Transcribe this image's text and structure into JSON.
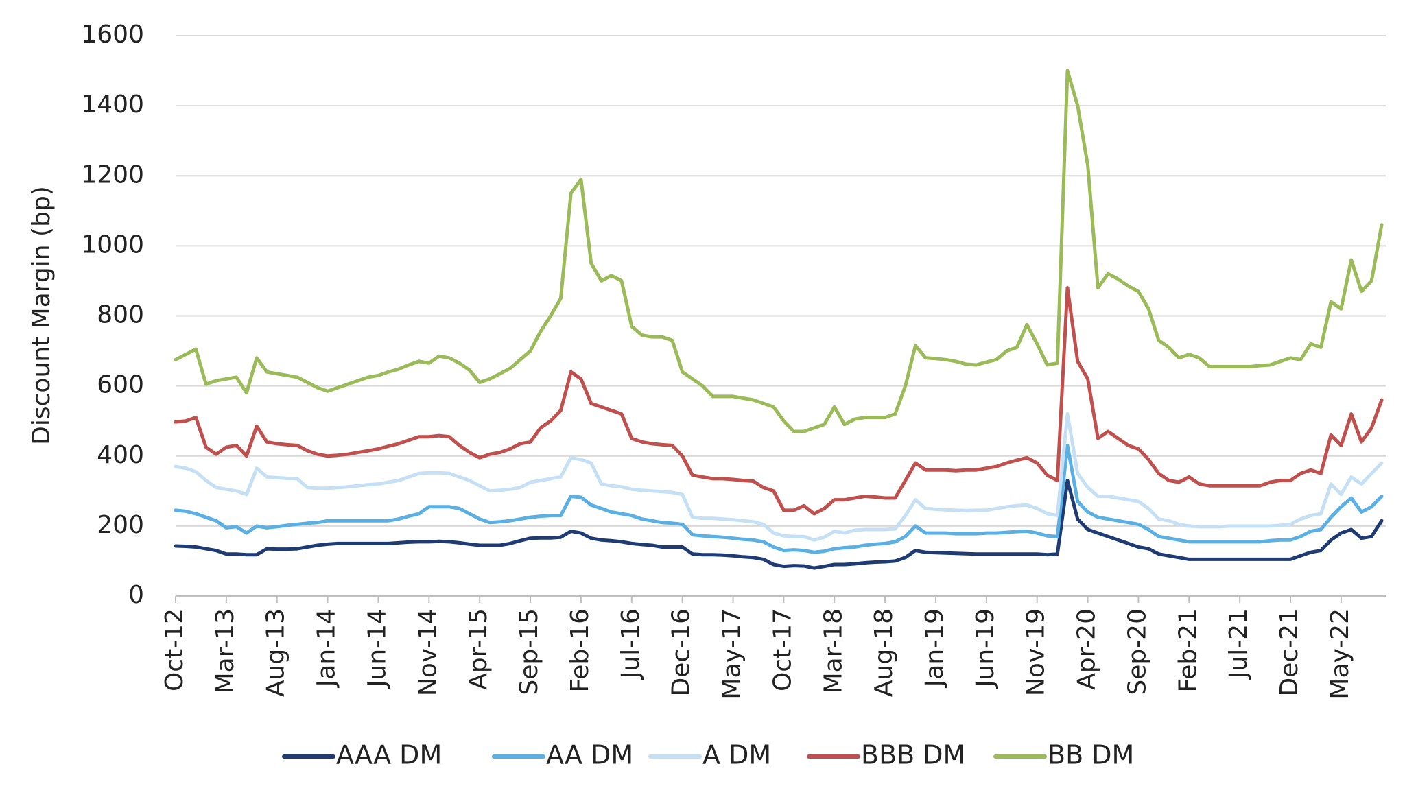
{
  "chart_data": {
    "type": "line",
    "y_label": "Discount Margin (bp)",
    "categories": [
      "Oct-12",
      null,
      null,
      null,
      null,
      "Mar-13",
      null,
      null,
      null,
      null,
      "Aug-13",
      null,
      null,
      null,
      null,
      "Jan-14",
      null,
      null,
      null,
      null,
      "Jun-14",
      null,
      null,
      null,
      null,
      "Nov-14",
      null,
      null,
      null,
      null,
      "Apr-15",
      null,
      null,
      null,
      null,
      "Sep-15",
      null,
      null,
      null,
      null,
      "Feb-16",
      null,
      null,
      null,
      null,
      "Jul-16",
      null,
      null,
      null,
      null,
      "Dec-16",
      null,
      null,
      null,
      null,
      "May-17",
      null,
      null,
      null,
      null,
      "Oct-17",
      null,
      null,
      null,
      null,
      "Mar-18",
      null,
      null,
      null,
      null,
      "Aug-18",
      null,
      null,
      null,
      null,
      "Jan-19",
      null,
      null,
      null,
      null,
      "Jun-19",
      null,
      null,
      null,
      null,
      "Nov-19",
      null,
      null,
      null,
      null,
      "Apr-20",
      null,
      null,
      null,
      null,
      "Sep-20",
      null,
      null,
      null,
      null,
      "Feb-21",
      null,
      null,
      null,
      null,
      "Jul-21",
      null,
      null,
      null,
      null,
      "Dec-21",
      null,
      null,
      null,
      null,
      "May-22",
      null,
      null,
      null,
      null
    ],
    "ylim": [
      0,
      1600
    ],
    "yticks": [
      0,
      200,
      400,
      600,
      800,
      1000,
      1200,
      1400,
      1600
    ],
    "grid": true,
    "legend": "bottom",
    "series": [
      {
        "name": "AAA DM",
        "color": "#1f3b73",
        "values": [
          143,
          142,
          140,
          135,
          130,
          120,
          120,
          118,
          118,
          135,
          134,
          134,
          135,
          140,
          145,
          148,
          150,
          150,
          150,
          150,
          150,
          150,
          152,
          154,
          155,
          155,
          156,
          155,
          152,
          148,
          145,
          145,
          145,
          150,
          158,
          165,
          166,
          166,
          168,
          185,
          180,
          165,
          160,
          158,
          155,
          150,
          147,
          145,
          140,
          140,
          140,
          120,
          118,
          118,
          117,
          115,
          112,
          110,
          105,
          90,
          85,
          87,
          86,
          80,
          85,
          90,
          90,
          92,
          95,
          97,
          98,
          100,
          110,
          130,
          125,
          124,
          123,
          122,
          121,
          120,
          120,
          120,
          120,
          120,
          120,
          120,
          118,
          120,
          330,
          220,
          190,
          180,
          170,
          160,
          150,
          140,
          135,
          120,
          115,
          110,
          105,
          105,
          105,
          105,
          105,
          105,
          105,
          105,
          105,
          105,
          105,
          115,
          125,
          130,
          160,
          180,
          190,
          165,
          170,
          215
        ]
      },
      {
        "name": "AA DM",
        "color": "#5aafe3",
        "values": [
          245,
          242,
          235,
          225,
          215,
          195,
          198,
          180,
          200,
          195,
          198,
          202,
          205,
          208,
          210,
          215,
          215,
          215,
          215,
          215,
          215,
          215,
          220,
          228,
          235,
          255,
          255,
          255,
          250,
          235,
          220,
          210,
          212,
          215,
          220,
          225,
          228,
          230,
          230,
          285,
          282,
          260,
          250,
          240,
          235,
          230,
          220,
          215,
          210,
          208,
          205,
          175,
          172,
          170,
          168,
          165,
          162,
          160,
          155,
          140,
          130,
          132,
          130,
          125,
          128,
          135,
          138,
          140,
          145,
          148,
          150,
          155,
          170,
          200,
          180,
          180,
          180,
          178,
          178,
          178,
          180,
          180,
          182,
          184,
          185,
          180,
          172,
          170,
          430,
          270,
          240,
          225,
          220,
          215,
          210,
          205,
          190,
          170,
          165,
          160,
          155,
          155,
          155,
          155,
          155,
          155,
          155,
          155,
          158,
          160,
          160,
          170,
          185,
          190,
          225,
          255,
          280,
          240,
          255,
          285
        ]
      },
      {
        "name": "A DM",
        "color": "#c5e0f4",
        "values": [
          370,
          365,
          355,
          330,
          310,
          305,
          300,
          290,
          365,
          340,
          338,
          336,
          335,
          310,
          308,
          308,
          310,
          312,
          315,
          318,
          320,
          325,
          330,
          340,
          350,
          352,
          352,
          350,
          340,
          330,
          315,
          300,
          302,
          305,
          310,
          325,
          330,
          335,
          340,
          395,
          390,
          380,
          320,
          315,
          312,
          305,
          302,
          300,
          298,
          296,
          290,
          225,
          222,
          222,
          220,
          218,
          215,
          212,
          205,
          180,
          172,
          170,
          170,
          160,
          168,
          185,
          180,
          188,
          190,
          190,
          190,
          192,
          230,
          275,
          250,
          248,
          246,
          245,
          244,
          245,
          245,
          250,
          255,
          258,
          260,
          250,
          235,
          230,
          520,
          350,
          310,
          285,
          285,
          280,
          275,
          270,
          250,
          220,
          215,
          205,
          200,
          198,
          198,
          198,
          200,
          200,
          200,
          200,
          200,
          202,
          205,
          220,
          230,
          235,
          320,
          290,
          340,
          320,
          350,
          380
        ]
      },
      {
        "name": "BBB DM",
        "color": "#c0504d",
        "values": [
          497,
          500,
          510,
          425,
          405,
          425,
          430,
          400,
          485,
          440,
          435,
          432,
          430,
          415,
          405,
          400,
          402,
          405,
          410,
          415,
          420,
          428,
          435,
          445,
          455,
          455,
          458,
          455,
          430,
          410,
          395,
          405,
          410,
          420,
          435,
          440,
          480,
          500,
          530,
          640,
          620,
          550,
          540,
          530,
          520,
          450,
          440,
          435,
          432,
          430,
          400,
          345,
          340,
          335,
          335,
          333,
          330,
          328,
          310,
          300,
          245,
          245,
          258,
          235,
          250,
          275,
          275,
          280,
          285,
          283,
          280,
          280,
          330,
          380,
          360,
          360,
          360,
          358,
          360,
          360,
          365,
          370,
          380,
          388,
          395,
          380,
          345,
          330,
          880,
          670,
          620,
          450,
          470,
          450,
          430,
          420,
          390,
          350,
          330,
          325,
          340,
          320,
          315,
          315,
          315,
          315,
          315,
          315,
          325,
          330,
          330,
          350,
          360,
          350,
          460,
          430,
          520,
          440,
          480,
          560
        ]
      },
      {
        "name": "BB DM",
        "color": "#9bbb59",
        "values": [
          675,
          690,
          705,
          605,
          615,
          620,
          625,
          580,
          680,
          640,
          635,
          630,
          625,
          610,
          595,
          585,
          595,
          605,
          615,
          625,
          630,
          640,
          648,
          660,
          670,
          665,
          685,
          680,
          665,
          645,
          610,
          620,
          635,
          650,
          675,
          700,
          755,
          800,
          850,
          1150,
          1190,
          950,
          900,
          915,
          900,
          770,
          745,
          740,
          740,
          730,
          640,
          620,
          600,
          570,
          570,
          570,
          565,
          560,
          550,
          540,
          500,
          470,
          470,
          480,
          490,
          540,
          490,
          505,
          510,
          510,
          510,
          520,
          600,
          715,
          680,
          678,
          675,
          670,
          662,
          660,
          668,
          675,
          700,
          710,
          775,
          720,
          660,
          665,
          1500,
          1400,
          1230,
          880,
          920,
          905,
          885,
          870,
          820,
          730,
          710,
          680,
          690,
          680,
          655,
          655,
          655,
          655,
          655,
          658,
          660,
          670,
          680,
          675,
          720,
          710,
          840,
          820,
          960,
          870,
          900,
          1060
        ]
      }
    ]
  }
}
